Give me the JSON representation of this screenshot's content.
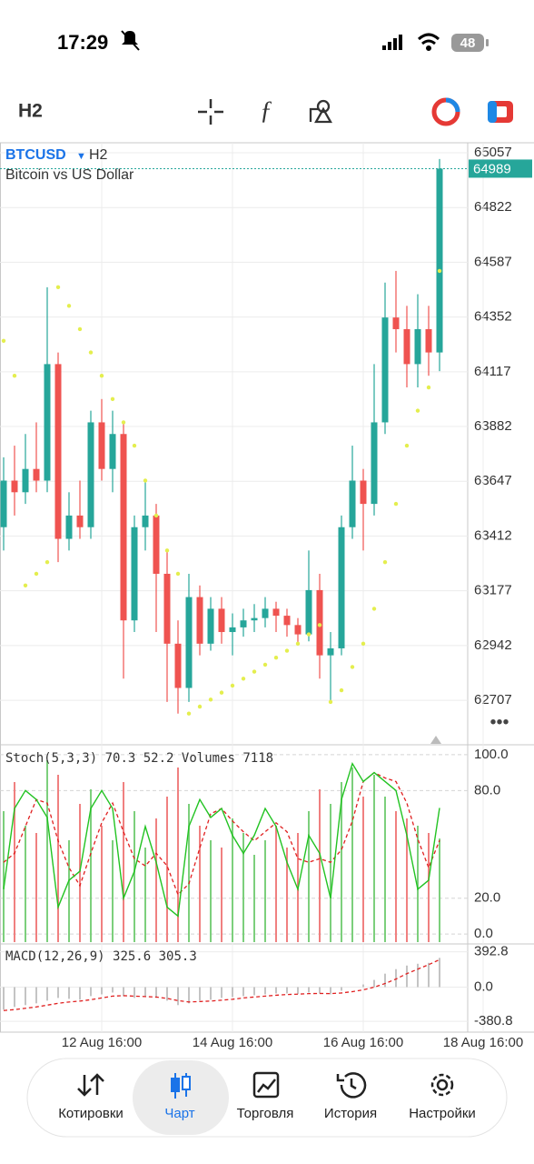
{
  "status_bar": {
    "time": "17:29",
    "battery": "48"
  },
  "toolbar": {
    "timeframe": "H2"
  },
  "chart_data": [
    {
      "type": "candlestick",
      "symbol": "BTCUSD",
      "timeframe": "H2",
      "description": "Bitcoin vs US Dollar",
      "last_price": 64989,
      "up_color": "#26a69a",
      "down_color": "#ef5350",
      "sar_color": "#e4ee4e",
      "categories": [
        null,
        null,
        null,
        null,
        null,
        null,
        null,
        null,
        null,
        "12 Aug 16:00",
        null,
        null,
        null,
        null,
        null,
        null,
        null,
        null,
        null,
        null,
        null,
        "14 Aug 16:00",
        null,
        null,
        null,
        null,
        null,
        null,
        null,
        null,
        null,
        null,
        null,
        "16 Aug 16:00",
        null,
        null,
        null,
        null,
        null,
        null,
        null,
        null,
        null,
        null,
        "18 Aug 16:00"
      ],
      "open": [
        63450,
        63650,
        63600,
        63700,
        63650,
        64150,
        63400,
        63500,
        63450,
        63900,
        63700,
        63850,
        63050,
        63450,
        63500,
        63250,
        62950,
        62760,
        63150,
        62950,
        63100,
        63000,
        63020,
        63050,
        63060,
        63100,
        63070,
        63030,
        62990,
        63180,
        62900,
        62930,
        63450,
        63650,
        63550,
        63900,
        64350,
        64300,
        64150,
        64300,
        64200,
        null,
        null,
        null,
        null
      ],
      "high": [
        63750,
        63800,
        63850,
        63900,
        64480,
        64200,
        63600,
        63650,
        63950,
        64000,
        63950,
        63900,
        63500,
        63650,
        63550,
        63350,
        63050,
        63250,
        63200,
        63150,
        63150,
        63080,
        63100,
        63120,
        63150,
        63130,
        63100,
        63060,
        63350,
        63250,
        63000,
        63500,
        63800,
        63700,
        64150,
        64500,
        64550,
        64400,
        64450,
        64400,
        65030,
        null,
        null,
        null,
        null
      ],
      "low": [
        63350,
        63500,
        63550,
        63600,
        63600,
        63300,
        63350,
        63400,
        63400,
        63650,
        63600,
        62800,
        63000,
        63350,
        63000,
        62700,
        62650,
        62700,
        62900,
        62920,
        62950,
        62900,
        62980,
        63000,
        63020,
        63000,
        62980,
        62950,
        62960,
        62800,
        62700,
        62900,
        63400,
        63350,
        63500,
        63850,
        64200,
        64050,
        64050,
        64100,
        64120,
        null,
        null,
        null,
        null
      ],
      "close": [
        63650,
        63600,
        63700,
        63650,
        64150,
        63400,
        63500,
        63450,
        63900,
        63700,
        63850,
        63050,
        63450,
        63500,
        63250,
        62950,
        62760,
        63150,
        62950,
        63100,
        63000,
        63020,
        63050,
        63060,
        63100,
        63070,
        63030,
        62990,
        63180,
        62900,
        62930,
        63450,
        63650,
        63550,
        63900,
        64350,
        64300,
        64150,
        64300,
        64200,
        64989,
        null,
        null,
        null,
        null
      ],
      "sar": [
        64250,
        64100,
        63200,
        63250,
        63300,
        64480,
        64400,
        64300,
        64200,
        64100,
        64000,
        63900,
        63800,
        63650,
        63500,
        63350,
        63250,
        62650,
        62680,
        62710,
        62740,
        62770,
        62800,
        62830,
        62860,
        62890,
        62920,
        62950,
        62990,
        63030,
        62700,
        62750,
        62850,
        62950,
        63100,
        63300,
        63550,
        63800,
        63950,
        64050,
        64550,
        null,
        null,
        null,
        null
      ],
      "ylim": [
        62520,
        65100
      ],
      "yticks": [
        62707,
        62942,
        63177,
        63412,
        63647,
        63882,
        64117,
        64352,
        64587,
        64822,
        65057
      ]
    },
    {
      "type": "stochastic",
      "name": "Stoch(5,3,3)",
      "k_value": 70.3,
      "d_value": 52.2,
      "volumes_name": "Volumes",
      "volume_value": 7118,
      "k_color": "#22c322",
      "d_color": "#e02020",
      "k": [
        25,
        70,
        80,
        75,
        65,
        15,
        30,
        35,
        70,
        80,
        70,
        20,
        35,
        60,
        40,
        15,
        10,
        60,
        75,
        65,
        70,
        55,
        45,
        55,
        70,
        60,
        40,
        25,
        55,
        45,
        20,
        75,
        95,
        85,
        90,
        85,
        80,
        55,
        25,
        30,
        70.3
      ],
      "d": [
        40,
        45,
        60,
        75,
        73,
        52,
        37,
        27,
        45,
        62,
        73,
        57,
        42,
        38,
        45,
        38,
        22,
        28,
        48,
        67,
        70,
        63,
        57,
        52,
        57,
        62,
        57,
        42,
        40,
        42,
        40,
        47,
        63,
        85,
        90,
        87,
        85,
        73,
        53,
        37,
        52.2
      ],
      "volumes": [
        9000,
        11000,
        8000,
        7500,
        12500,
        11500,
        7000,
        9500,
        10500,
        8000,
        7000,
        11000,
        9000,
        6500,
        8500,
        10000,
        12000,
        9500,
        8000,
        7000,
        6500,
        8500,
        7500,
        6000,
        7000,
        8000,
        6500,
        7500,
        9000,
        10500,
        9500,
        11000,
        12000,
        10000,
        11500,
        10000,
        9000,
        8500,
        8000,
        7500,
        7118
      ],
      "ylim": [
        -5.5,
        105
      ],
      "yticks": [
        {
          "value": 0,
          "label": "0.0"
        },
        {
          "value": 20,
          "label": "20.0"
        },
        {
          "value": 80,
          "label": "80.0"
        },
        {
          "value": 100,
          "label": "100.0"
        }
      ]
    },
    {
      "type": "macd",
      "name": "MACD(12,26,9)",
      "macd_value": 325.6,
      "signal_value": 305.3,
      "signal_color": "#e02020",
      "histogram": [
        -250,
        -220,
        -200,
        -180,
        -150,
        -120,
        -130,
        -140,
        -100,
        -80,
        -60,
        -100,
        -120,
        -110,
        -120,
        -150,
        -200,
        -180,
        -150,
        -140,
        -120,
        -110,
        -100,
        -90,
        -80,
        -70,
        -70,
        -75,
        -60,
        -70,
        -80,
        -40,
        0,
        30,
        80,
        150,
        200,
        240,
        260,
        270,
        325.6
      ],
      "signal": [
        -260,
        -250,
        -235,
        -220,
        -200,
        -180,
        -165,
        -155,
        -140,
        -120,
        -100,
        -95,
        -100,
        -105,
        -110,
        -125,
        -150,
        -165,
        -160,
        -155,
        -145,
        -135,
        -120,
        -110,
        -100,
        -90,
        -82,
        -78,
        -72,
        -70,
        -72,
        -65,
        -50,
        -30,
        0,
        40,
        90,
        150,
        200,
        250,
        305.3
      ],
      "ylim": [
        -480,
        460
      ],
      "yticks": [
        -380.8,
        {
          "value": 0,
          "label": "0.0"
        },
        392.8
      ]
    }
  ],
  "nav": {
    "tabs": [
      "Котировки",
      "Чарт",
      "Торговля",
      "История",
      "Настройки"
    ]
  }
}
